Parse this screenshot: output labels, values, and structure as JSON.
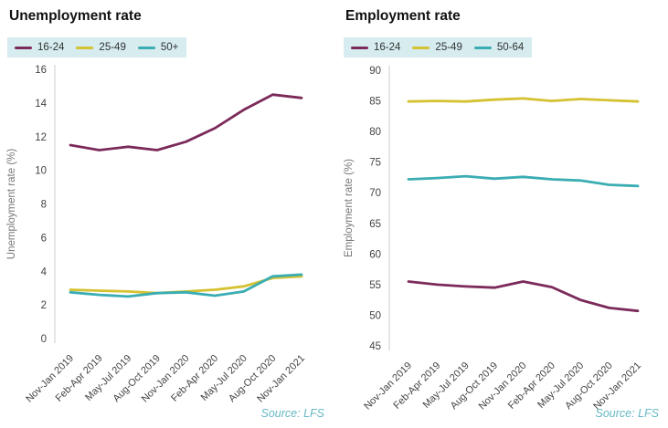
{
  "chart_data": [
    {
      "type": "line",
      "title": "Unemployment rate",
      "ylabel": "Unemployment rate (%)",
      "xlabel": "",
      "legend_position": "top-left",
      "grid": false,
      "ylim": [
        0,
        16
      ],
      "yticks": [
        0,
        2,
        4,
        6,
        8,
        10,
        12,
        14,
        16
      ],
      "categories": [
        "Nov-Jan 2019",
        "Feb-Apr 2019",
        "May-Jul 2019",
        "Aug-Oct 2019",
        "Nov-Jan 2020",
        "Feb-Apr 2020",
        "May-Jul 2020",
        "Aug-Oct 2020",
        "Nov-Jan 2021"
      ],
      "series": [
        {
          "name": "16-24",
          "color": "#7b2a5a",
          "values": [
            11.5,
            11.2,
            11.4,
            11.2,
            11.7,
            12.5,
            13.6,
            14.5,
            14.3
          ]
        },
        {
          "name": "25-49",
          "color": "#d4c230",
          "values": [
            2.9,
            2.85,
            2.8,
            2.7,
            2.8,
            2.9,
            3.1,
            3.6,
            3.7
          ]
        },
        {
          "name": "50+",
          "color": "#3aadb3",
          "values": [
            2.75,
            2.6,
            2.5,
            2.7,
            2.75,
            2.55,
            2.8,
            3.7,
            3.8
          ]
        }
      ],
      "source": "Source: LFS"
    },
    {
      "type": "line",
      "title": "Employment rate",
      "ylabel": "Employment rate (%)",
      "xlabel": "",
      "legend_position": "top-left",
      "grid": false,
      "ylim": [
        45,
        90
      ],
      "yticks": [
        45,
        50,
        55,
        60,
        65,
        70,
        75,
        80,
        85,
        90
      ],
      "categories": [
        "Nov-Jan 2019",
        "Feb-Apr 2019",
        "May-Jul 2019",
        "Aug-Oct 2019",
        "Nov-Jan 2020",
        "Feb-Apr 2020",
        "May-Jul 2020",
        "Aug-Oct 2020",
        "Nov-Jan 2021"
      ],
      "series": [
        {
          "name": "16-24",
          "color": "#7b2a5a",
          "values": [
            55.5,
            55.0,
            54.7,
            54.5,
            55.5,
            54.6,
            52.5,
            51.2,
            50.7
          ]
        },
        {
          "name": "25-49",
          "color": "#d4c230",
          "values": [
            84.9,
            85.0,
            84.9,
            85.2,
            85.4,
            85.0,
            85.3,
            85.1,
            84.9
          ]
        },
        {
          "name": "50-64",
          "color": "#3aadb3",
          "values": [
            72.2,
            72.4,
            72.7,
            72.3,
            72.6,
            72.2,
            72.0,
            71.3,
            71.1
          ]
        }
      ],
      "source": "Source: LFS"
    }
  ]
}
